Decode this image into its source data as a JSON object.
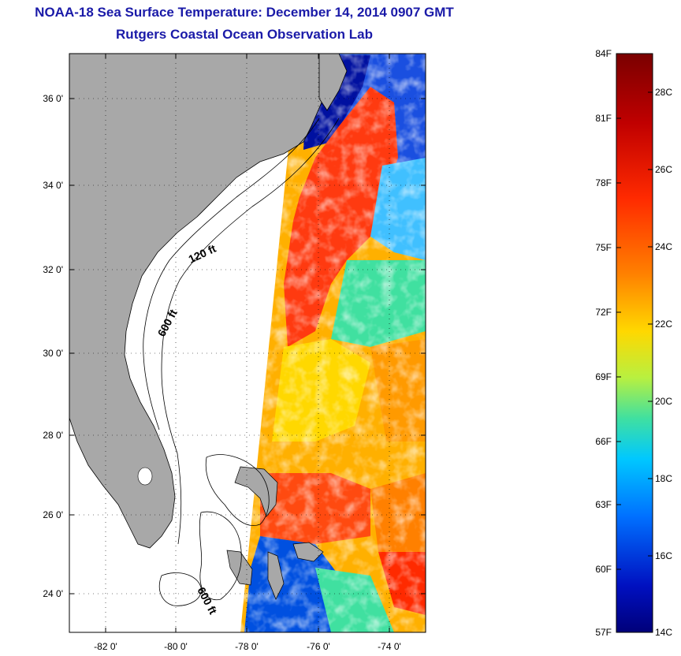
{
  "header": {
    "title": "NOAA-18 Sea Surface Temperature:  December 14, 2014 0907 GMT",
    "subtitle": "Rutgers Coastal Ocean Observation Lab"
  },
  "map": {
    "lat_ticks": [
      "36 0'",
      "34 0'",
      "32 0'",
      "30 0'",
      "28 0'",
      "26 0'",
      "24 0'"
    ],
    "lon_ticks": [
      "-82 0'",
      "-80 0'",
      "-78 0'",
      "-76 0'",
      "-74 0'"
    ],
    "contour_labels": [
      "120 ft",
      "600 ft",
      "600 ft"
    ],
    "lat_range": [
      23,
      37
    ],
    "lon_range": [
      -83,
      -73
    ]
  },
  "colorbar": {
    "f_labels": [
      "84F",
      "81F",
      "78F",
      "75F",
      "72F",
      "69F",
      "66F",
      "63F",
      "60F",
      "57F"
    ],
    "c_labels": [
      "28C",
      "26C",
      "24C",
      "22C",
      "20C",
      "18C",
      "16C",
      "14C"
    ],
    "colors": [
      "#7a0000",
      "#c00000",
      "#ff2a00",
      "#ff8000",
      "#ffd800",
      "#b8f040",
      "#40e0a0",
      "#00c8ff",
      "#0070ff",
      "#0010c0",
      "#00007a"
    ]
  }
}
